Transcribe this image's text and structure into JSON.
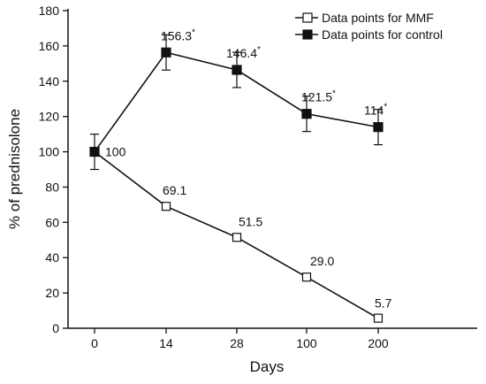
{
  "chart_data": {
    "type": "line",
    "xlabel": "Days",
    "ylabel": "% of prednisolone",
    "categories": [
      "0",
      "14",
      "28",
      "100",
      "200"
    ],
    "ylim": [
      0,
      180
    ],
    "yticks": [
      0,
      20,
      40,
      60,
      80,
      100,
      120,
      140,
      160,
      180
    ],
    "grid": false,
    "legend_position": "top-right",
    "series": [
      {
        "name": "Data points for MMF",
        "marker": "open-square",
        "color": "#111111",
        "values": [
          100,
          69.1,
          51.5,
          29.0,
          5.7
        ],
        "labels": [
          "100",
          "69.1",
          "51.5",
          "29.0",
          "5.7"
        ]
      },
      {
        "name": "Data points for control",
        "marker": "filled-square",
        "color": "#111111",
        "values": [
          100,
          156.3,
          146.4,
          121.5,
          114
        ],
        "labels": [
          "",
          "156.3",
          "146.4",
          "121.5",
          "114"
        ],
        "error": [
          10,
          10,
          10,
          10,
          10
        ],
        "significant": [
          false,
          true,
          true,
          true,
          true
        ]
      }
    ],
    "significance_marker": "*"
  }
}
